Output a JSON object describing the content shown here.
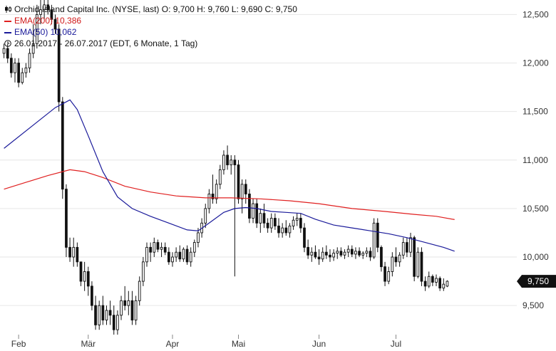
{
  "header": {
    "title": "Orchid Island Capital Inc. (NYSE, last)  O: 9,700  H: 9,760  L: 9,690  C: 9,750",
    "ema200": "EMA(200)  10,386",
    "ema50": "EMA(50)  10,062",
    "range": "26.01.2017 - 26.07.2017  (EDT, 6 Monate, 1 Tag)"
  },
  "colors": {
    "ema200": "#e02020",
    "ema50": "#1a1a9a",
    "candle": "#111111",
    "badge": "#111111"
  },
  "chart_data": {
    "type": "candlestick",
    "ylim": [
      9.2,
      12.65
    ],
    "yticks": [
      9.5,
      10.0,
      10.5,
      11.0,
      11.5,
      12.0,
      12.5
    ],
    "ytick_labels": [
      "9,500",
      "10,000",
      "10,500",
      "11,000",
      "11,500",
      "12,000",
      "12,500"
    ],
    "xticks": [
      {
        "label": "Feb",
        "index": 4
      },
      {
        "label": "Mär",
        "index": 23
      },
      {
        "label": "Apr",
        "index": 46
      },
      {
        "label": "Mai",
        "index": 64
      },
      {
        "label": "Jun",
        "index": 86
      },
      {
        "label": "Jul",
        "index": 107
      }
    ],
    "last_price": 9.75,
    "last_price_label": "9,750",
    "candles": [
      [
        12.1,
        12.2,
        12.05,
        12.15
      ],
      [
        12.15,
        12.2,
        12.0,
        12.05
      ],
      [
        12.05,
        12.1,
        11.85,
        11.9
      ],
      [
        11.9,
        12.05,
        11.8,
        12.0
      ],
      [
        12.0,
        12.05,
        11.75,
        11.8
      ],
      [
        11.8,
        11.95,
        11.78,
        11.9
      ],
      [
        11.9,
        12.0,
        11.85,
        11.95
      ],
      [
        11.95,
        12.15,
        11.9,
        12.1
      ],
      [
        12.1,
        12.4,
        12.05,
        12.2
      ],
      [
        12.2,
        12.6,
        12.15,
        12.5
      ],
      [
        12.5,
        12.65,
        12.4,
        12.55
      ],
      [
        12.55,
        12.65,
        12.45,
        12.6
      ],
      [
        12.6,
        12.65,
        12.5,
        12.55
      ],
      [
        12.55,
        12.6,
        12.4,
        12.45
      ],
      [
        12.45,
        12.5,
        12.3,
        12.35
      ],
      [
        12.35,
        12.4,
        11.5,
        11.6
      ],
      [
        11.6,
        11.65,
        10.6,
        10.7
      ],
      [
        10.7,
        10.75,
        10.0,
        10.1
      ],
      [
        10.1,
        10.2,
        9.95,
        10.0
      ],
      [
        10.0,
        10.2,
        9.9,
        10.1
      ],
      [
        10.1,
        10.15,
        9.9,
        9.95
      ],
      [
        9.95,
        9.95,
        9.7,
        9.75
      ],
      [
        9.75,
        9.95,
        9.65,
        9.85
      ],
      [
        9.85,
        9.9,
        9.6,
        9.7
      ],
      [
        9.7,
        9.75,
        9.45,
        9.5
      ],
      [
        9.5,
        9.6,
        9.25,
        9.3
      ],
      [
        9.3,
        9.55,
        9.25,
        9.5
      ],
      [
        9.5,
        9.6,
        9.3,
        9.35
      ],
      [
        9.35,
        9.5,
        9.3,
        9.45
      ],
      [
        9.45,
        9.55,
        9.3,
        9.4
      ],
      [
        9.4,
        9.5,
        9.2,
        9.25
      ],
      [
        9.25,
        9.45,
        9.2,
        9.4
      ],
      [
        9.4,
        9.6,
        9.35,
        9.55
      ],
      [
        9.55,
        9.7,
        9.45,
        9.5
      ],
      [
        9.5,
        9.65,
        9.4,
        9.55
      ],
      [
        9.55,
        9.65,
        9.3,
        9.35
      ],
      [
        9.35,
        9.6,
        9.3,
        9.55
      ],
      [
        9.55,
        9.8,
        9.5,
        9.75
      ],
      [
        9.75,
        10.0,
        9.7,
        9.95
      ],
      [
        9.95,
        10.15,
        9.9,
        10.1
      ],
      [
        10.1,
        10.15,
        9.95,
        10.05
      ],
      [
        10.05,
        10.2,
        10.0,
        10.15
      ],
      [
        10.15,
        10.18,
        10.05,
        10.08
      ],
      [
        10.08,
        10.15,
        10.0,
        10.1
      ],
      [
        10.1,
        10.15,
        10.02,
        10.05
      ],
      [
        10.05,
        10.1,
        9.92,
        9.95
      ],
      [
        9.95,
        10.05,
        9.9,
        10.0
      ],
      [
        10.0,
        10.1,
        9.95,
        10.05
      ],
      [
        10.05,
        10.12,
        9.95,
        9.98
      ],
      [
        9.98,
        10.1,
        9.95,
        10.08
      ],
      [
        10.08,
        10.12,
        9.92,
        9.95
      ],
      [
        9.95,
        10.1,
        9.9,
        10.05
      ],
      [
        10.05,
        10.18,
        10.0,
        10.15
      ],
      [
        10.15,
        10.3,
        10.1,
        10.25
      ],
      [
        10.25,
        10.4,
        10.2,
        10.35
      ],
      [
        10.35,
        10.55,
        10.3,
        10.5
      ],
      [
        10.5,
        10.7,
        10.45,
        10.65
      ],
      [
        10.65,
        10.85,
        10.55,
        10.6
      ],
      [
        10.6,
        10.8,
        10.55,
        10.75
      ],
      [
        10.75,
        10.95,
        10.7,
        10.9
      ],
      [
        10.9,
        11.1,
        10.85,
        11.05
      ],
      [
        11.05,
        11.15,
        10.9,
        10.95
      ],
      [
        10.95,
        11.05,
        10.85,
        11.0
      ],
      [
        11.0,
        11.05,
        9.8,
        10.95
      ],
      [
        10.95,
        11.0,
        10.55,
        10.6
      ],
      [
        10.6,
        10.8,
        10.45,
        10.75
      ],
      [
        10.75,
        10.8,
        10.55,
        10.65
      ],
      [
        10.65,
        10.7,
        10.35,
        10.4
      ],
      [
        10.4,
        10.6,
        10.35,
        10.55
      ],
      [
        10.55,
        10.6,
        10.3,
        10.35
      ],
      [
        10.35,
        10.5,
        10.25,
        10.45
      ],
      [
        10.45,
        10.55,
        10.3,
        10.35
      ],
      [
        10.35,
        10.4,
        10.25,
        10.3
      ],
      [
        10.3,
        10.45,
        10.25,
        10.4
      ],
      [
        10.4,
        10.45,
        10.28,
        10.32
      ],
      [
        10.32,
        10.4,
        10.2,
        10.25
      ],
      [
        10.25,
        10.35,
        10.2,
        10.3
      ],
      [
        10.3,
        10.38,
        10.22,
        10.25
      ],
      [
        10.25,
        10.35,
        10.2,
        10.32
      ],
      [
        10.32,
        10.42,
        10.28,
        10.38
      ],
      [
        10.38,
        10.45,
        10.32,
        10.4
      ],
      [
        10.4,
        10.45,
        10.25,
        10.3
      ],
      [
        10.3,
        10.35,
        10.05,
        10.1
      ],
      [
        10.1,
        10.18,
        9.98,
        10.02
      ],
      [
        10.02,
        10.1,
        9.95,
        10.05
      ],
      [
        10.05,
        10.12,
        9.98,
        10.0
      ],
      [
        10.0,
        10.08,
        9.92,
        9.98
      ],
      [
        9.98,
        10.1,
        9.95,
        10.05
      ],
      [
        10.05,
        10.12,
        9.98,
        10.02
      ],
      [
        10.02,
        10.08,
        9.95,
        10.0
      ],
      [
        10.0,
        10.08,
        9.96,
        10.04
      ],
      [
        10.04,
        10.1,
        9.98,
        10.06
      ],
      [
        10.06,
        10.1,
        10.0,
        10.02
      ],
      [
        10.02,
        10.08,
        9.98,
        10.05
      ],
      [
        10.05,
        10.12,
        10.0,
        10.08
      ],
      [
        10.08,
        10.12,
        10.0,
        10.03
      ],
      [
        10.03,
        10.1,
        9.98,
        10.06
      ],
      [
        10.06,
        10.1,
        10.0,
        10.02
      ],
      [
        10.02,
        10.06,
        9.98,
        10.04
      ],
      [
        10.04,
        10.1,
        10.0,
        10.06
      ],
      [
        10.06,
        10.1,
        9.96,
        10.0
      ],
      [
        10.0,
        10.4,
        9.98,
        10.35
      ],
      [
        10.35,
        10.4,
        10.05,
        10.1
      ],
      [
        10.1,
        10.12,
        9.85,
        9.9
      ],
      [
        9.9,
        9.95,
        9.7,
        9.75
      ],
      [
        9.75,
        9.9,
        9.72,
        9.85
      ],
      [
        9.85,
        10.05,
        9.8,
        10.0
      ],
      [
        10.0,
        10.1,
        9.9,
        9.95
      ],
      [
        9.95,
        10.05,
        9.9,
        10.02
      ],
      [
        10.02,
        10.2,
        9.98,
        10.15
      ],
      [
        10.15,
        10.2,
        10.0,
        10.05
      ],
      [
        10.05,
        10.25,
        10.0,
        10.2
      ],
      [
        10.2,
        10.22,
        9.75,
        9.8
      ],
      [
        9.8,
        10.1,
        9.78,
        10.05
      ],
      [
        10.05,
        10.1,
        9.7,
        9.75
      ],
      [
        9.75,
        9.8,
        9.65,
        9.7
      ],
      [
        9.7,
        9.85,
        9.68,
        9.8
      ],
      [
        9.8,
        9.82,
        9.7,
        9.74
      ],
      [
        9.74,
        9.82,
        9.7,
        9.78
      ],
      [
        9.78,
        9.8,
        9.65,
        9.68
      ],
      [
        9.68,
        9.78,
        9.65,
        9.72
      ],
      [
        9.7,
        9.76,
        9.69,
        9.75
      ]
    ],
    "ema50": [
      [
        0,
        11.12
      ],
      [
        8,
        11.36
      ],
      [
        14,
        11.54
      ],
      [
        18,
        11.62
      ],
      [
        20,
        11.52
      ],
      [
        23,
        11.25
      ],
      [
        27,
        10.88
      ],
      [
        31,
        10.62
      ],
      [
        35,
        10.5
      ],
      [
        40,
        10.42
      ],
      [
        45,
        10.35
      ],
      [
        50,
        10.28
      ],
      [
        53,
        10.27
      ],
      [
        56,
        10.35
      ],
      [
        60,
        10.46
      ],
      [
        63,
        10.5
      ],
      [
        66,
        10.51
      ],
      [
        69,
        10.5
      ],
      [
        73,
        10.47
      ],
      [
        77,
        10.46
      ],
      [
        81,
        10.45
      ],
      [
        85,
        10.39
      ],
      [
        90,
        10.33
      ],
      [
        95,
        10.3
      ],
      [
        100,
        10.27
      ],
      [
        105,
        10.24
      ],
      [
        110,
        10.2
      ],
      [
        115,
        10.15
      ],
      [
        120,
        10.1
      ],
      [
        123,
        10.06
      ]
    ],
    "ema200": [
      [
        0,
        10.7
      ],
      [
        6,
        10.77
      ],
      [
        12,
        10.84
      ],
      [
        18,
        10.9
      ],
      [
        22,
        10.88
      ],
      [
        27,
        10.82
      ],
      [
        33,
        10.73
      ],
      [
        40,
        10.67
      ],
      [
        47,
        10.63
      ],
      [
        55,
        10.61
      ],
      [
        62,
        10.61
      ],
      [
        70,
        10.6
      ],
      [
        78,
        10.58
      ],
      [
        86,
        10.55
      ],
      [
        95,
        10.5
      ],
      [
        104,
        10.47
      ],
      [
        112,
        10.44
      ],
      [
        118,
        10.42
      ],
      [
        123,
        10.386
      ]
    ]
  }
}
